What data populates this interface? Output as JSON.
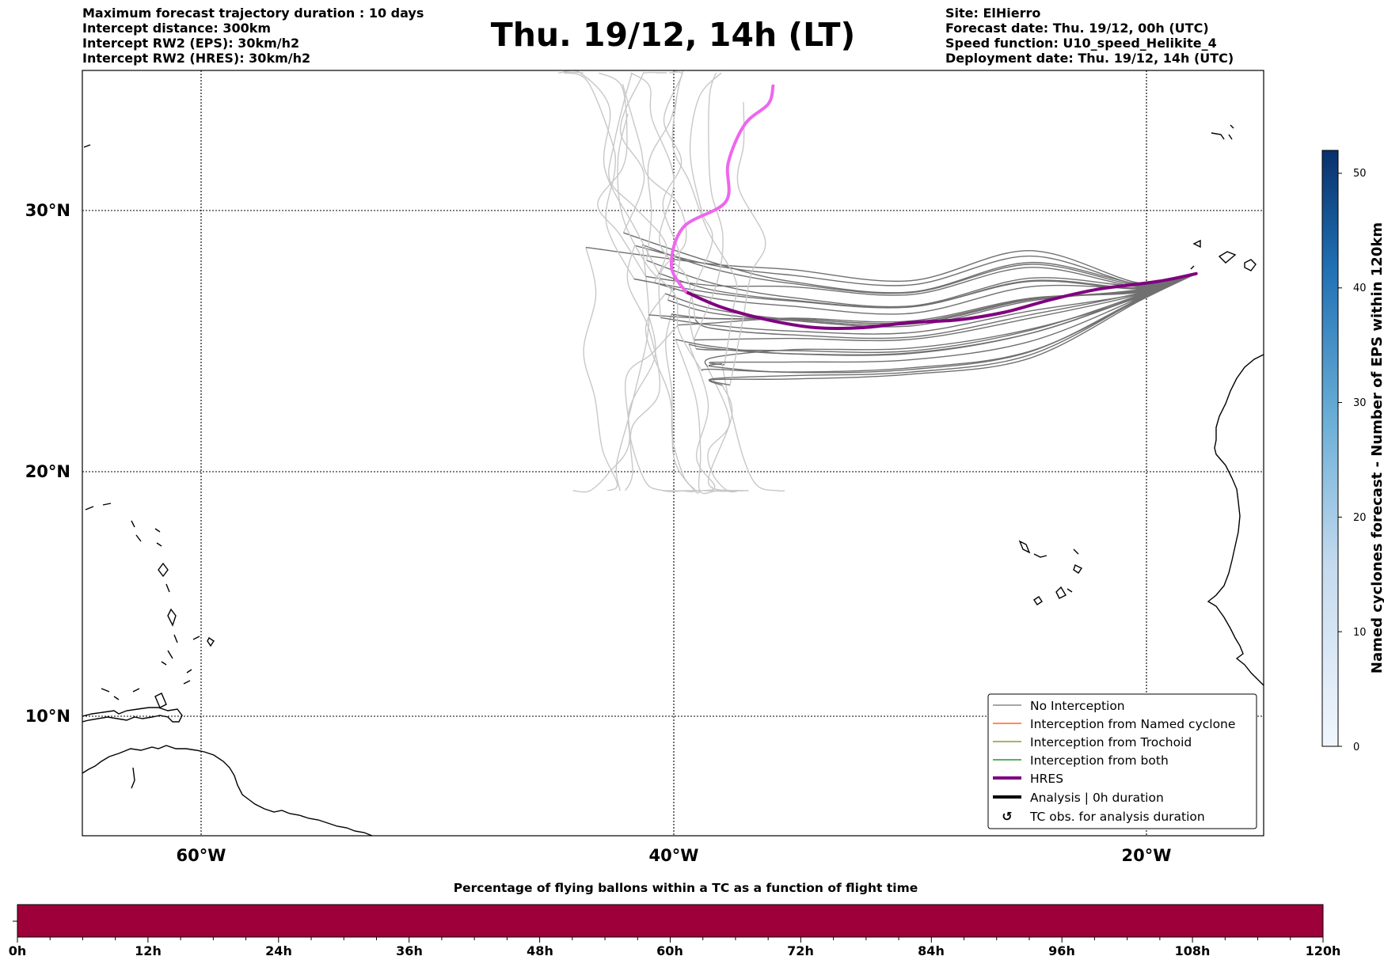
{
  "header": {
    "left_lines": [
      "Maximum forecast trajectory duration : 10 days",
      "Intercept distance: 300km",
      "Intercept RW2 (EPS):  30km/h2",
      "Intercept RW2 (HRES): 30km/h2"
    ],
    "title": "Thu. 19/12, 14h (LT)",
    "right_lines": [
      "Site: ElHierro",
      "Forecast date: Thu. 19/12, 00h (UTC)",
      "Speed function: U10_speed_Helikite_4",
      "Deployment date: Thu. 19/12, 14h (UTC)"
    ]
  },
  "colors": {
    "no_interception": "#707070",
    "no_interception_light": "#c8c8c8",
    "named_cyclone": "#ff4500",
    "trochoid": "#808000",
    "both": "#008000",
    "hres": "#800080",
    "hres_light": "#ee66ee",
    "analysis": "#000000",
    "timebar": "#9e0039"
  },
  "chart_data": {
    "type": "map-trajectories",
    "region": {
      "lon_range": [
        -65,
        -15
      ],
      "lat_range": [
        5,
        35
      ]
    },
    "lon_ticks": [
      -60,
      -40,
      -20
    ],
    "lon_tick_labels": [
      "60°W",
      "40°W",
      "20°W"
    ],
    "lat_ticks": [
      10,
      20,
      30
    ],
    "lat_tick_labels": [
      "10°N",
      "20°N",
      "30°N"
    ],
    "grid": true,
    "site": {
      "name": "ElHierro",
      "lon": -17.9,
      "lat": 27.7
    },
    "hres_track": {
      "name": "HRES",
      "points": [
        [
          -17.9,
          27.7
        ],
        [
          -19.5,
          27.4
        ],
        [
          -22,
          27.1
        ],
        [
          -24,
          26.7
        ],
        [
          -26,
          26.2
        ],
        [
          -28,
          25.9
        ],
        [
          -30,
          25.8
        ],
        [
          -32,
          25.6
        ],
        [
          -34,
          25.6
        ],
        [
          -36,
          25.9
        ],
        [
          -38,
          26.4
        ],
        [
          -39.5,
          27.0
        ],
        [
          -40.1,
          28.0
        ],
        [
          -39.6,
          29.5
        ],
        [
          -37.8,
          30.5
        ],
        [
          -37.7,
          32.0
        ],
        [
          -37.0,
          33.5
        ],
        [
          -36.0,
          34.3
        ],
        [
          -35.8,
          35.0
        ]
      ]
    },
    "eps_member_count": 26,
    "legend": {
      "position": "lower-right",
      "items": [
        "No Interception",
        "Interception from Named cyclone",
        "Interception from Trochoid",
        "Interception from both",
        "HRES",
        "Analysis | 0h duration",
        "TC obs. for analysis duration"
      ]
    },
    "colorbar": {
      "label": "Named cyclones forecast - Number of EPS within 120km",
      "range": [
        0,
        52
      ],
      "ticks": [
        0,
        10,
        20,
        30,
        40,
        50
      ],
      "tick_labels": [
        "0",
        "10",
        "20",
        "30",
        "40",
        "50"
      ]
    },
    "timebar": {
      "title": "Percentage of flying ballons within a TC as a function of flight time",
      "range_h": [
        0,
        120
      ],
      "ticks": [
        0,
        12,
        24,
        36,
        48,
        60,
        72,
        84,
        96,
        108,
        120
      ],
      "tick_labels": [
        "0h",
        "12h",
        "24h",
        "36h",
        "48h",
        "60h",
        "72h",
        "84h",
        "96h",
        "108h",
        "120h"
      ]
    }
  }
}
